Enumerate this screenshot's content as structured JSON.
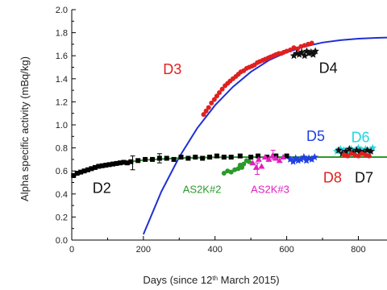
{
  "chart_data": {
    "type": "scatter",
    "xlabel": "Days (since 12th March 2015)",
    "xlabel_parts": {
      "before": "Days (since 12",
      "sup": "th",
      "after": " March 2015)"
    },
    "ylabel": "Alpha specific activity (mBq/kg)",
    "xlim": [
      0,
      880
    ],
    "ylim": [
      0,
      2.0
    ],
    "x_ticks": [
      {
        "value": 0,
        "label": "0"
      },
      {
        "value": 200,
        "label": "200"
      },
      {
        "value": 400,
        "label": "400"
      },
      {
        "value": 600,
        "label": "600"
      },
      {
        "value": 800,
        "label": "800"
      }
    ],
    "y_ticks": [
      {
        "value": 0.0,
        "label": "0.0"
      },
      {
        "value": 0.2,
        "label": "0.2"
      },
      {
        "value": 0.4,
        "label": "0.4"
      },
      {
        "value": 0.6,
        "label": "0.6"
      },
      {
        "value": 0.8,
        "label": "0.8"
      },
      {
        "value": 1.0,
        "label": "1.0"
      },
      {
        "value": 1.2,
        "label": "1.2"
      },
      {
        "value": 1.4,
        "label": "1.4"
      },
      {
        "value": 1.6,
        "label": "1.6"
      },
      {
        "value": 1.8,
        "label": "1.8"
      },
      {
        "value": 2.0,
        "label": "2.0"
      }
    ],
    "grid": false,
    "curves": [
      {
        "color": "#1f2fd6",
        "points": [
          [
            200,
            0.05
          ],
          [
            250,
            0.42
          ],
          [
            300,
            0.72
          ],
          [
            350,
            0.97
          ],
          [
            400,
            1.17
          ],
          [
            450,
            1.33
          ],
          [
            500,
            1.46
          ],
          [
            550,
            1.56
          ],
          [
            600,
            1.63
          ],
          [
            650,
            1.68
          ],
          [
            700,
            1.715
          ],
          [
            750,
            1.735
          ],
          [
            800,
            1.748
          ],
          [
            850,
            1.755
          ],
          [
            880,
            1.758
          ]
        ]
      },
      {
        "color": "#2a9a2a",
        "points": [
          [
            0,
            0.55
          ],
          [
            100,
            0.655
          ],
          [
            200,
            0.695
          ],
          [
            300,
            0.712
          ],
          [
            400,
            0.718
          ],
          [
            500,
            0.72
          ],
          [
            600,
            0.72
          ],
          [
            700,
            0.72
          ],
          [
            800,
            0.72
          ],
          [
            880,
            0.72
          ]
        ]
      }
    ],
    "series": [
      {
        "name": "D2",
        "color": "#000000",
        "marker": "square",
        "points": [
          [
            5,
            0.56
          ],
          [
            15,
            0.58
          ],
          [
            25,
            0.59
          ],
          [
            35,
            0.6
          ],
          [
            45,
            0.61
          ],
          [
            55,
            0.62
          ],
          [
            65,
            0.63
          ],
          [
            75,
            0.64
          ],
          [
            85,
            0.645
          ],
          [
            95,
            0.65
          ],
          [
            105,
            0.655
          ],
          [
            115,
            0.66
          ],
          [
            125,
            0.665
          ],
          [
            135,
            0.67
          ],
          [
            145,
            0.675
          ],
          [
            155,
            0.67
          ],
          [
            165,
            0.68
          ],
          [
            185,
            0.69
          ],
          [
            205,
            0.7
          ],
          [
            225,
            0.7
          ],
          [
            245,
            0.71
          ],
          [
            265,
            0.71
          ],
          [
            285,
            0.7
          ],
          [
            305,
            0.72
          ],
          [
            325,
            0.71
          ],
          [
            345,
            0.72
          ],
          [
            365,
            0.71
          ],
          [
            385,
            0.72
          ],
          [
            405,
            0.73
          ],
          [
            425,
            0.72
          ],
          [
            445,
            0.72
          ],
          [
            470,
            0.73
          ],
          [
            500,
            0.72
          ],
          [
            520,
            0.73
          ],
          [
            545,
            0.72
          ],
          [
            570,
            0.73
          ],
          [
            600,
            0.73
          ]
        ],
        "error_bars": [
          [
            170,
            0.67,
            0.06
          ],
          [
            245,
            0.71,
            0.04
          ]
        ]
      },
      {
        "name": "AS2K#2",
        "color": "#2a9a2a",
        "marker": "circle",
        "points": [
          [
            425,
            0.58
          ],
          [
            435,
            0.6
          ],
          [
            445,
            0.59
          ],
          [
            455,
            0.61
          ],
          [
            465,
            0.62
          ],
          [
            470,
            0.65
          ],
          [
            475,
            0.63
          ],
          [
            480,
            0.66
          ],
          [
            488,
            0.69
          ],
          [
            495,
            0.68
          ]
        ]
      },
      {
        "name": "AS2K#3",
        "color": "#e020c0",
        "marker": "triangle",
        "points": [
          [
            505,
            0.67
          ],
          [
            515,
            0.63
          ],
          [
            522,
            0.7
          ],
          [
            530,
            0.64
          ],
          [
            540,
            0.72
          ],
          [
            550,
            0.7
          ],
          [
            560,
            0.73
          ],
          [
            570,
            0.71
          ],
          [
            580,
            0.69
          ],
          [
            590,
            0.72
          ]
        ],
        "error_bars": [
          [
            518,
            0.62,
            0.05
          ],
          [
            562,
            0.74,
            0.04
          ]
        ]
      },
      {
        "name": "D3",
        "color": "#e02020",
        "marker": "circle",
        "points": [
          [
            368,
            1.09
          ],
          [
            375,
            1.12
          ],
          [
            382,
            1.15
          ],
          [
            390,
            1.19
          ],
          [
            398,
            1.22
          ],
          [
            405,
            1.25
          ],
          [
            412,
            1.28
          ],
          [
            420,
            1.31
          ],
          [
            428,
            1.34
          ],
          [
            435,
            1.36
          ],
          [
            442,
            1.38
          ],
          [
            450,
            1.4
          ],
          [
            458,
            1.42
          ],
          [
            465,
            1.44
          ],
          [
            472,
            1.46
          ],
          [
            480,
            1.47
          ],
          [
            488,
            1.49
          ],
          [
            495,
            1.5
          ],
          [
            503,
            1.51
          ],
          [
            510,
            1.52
          ],
          [
            518,
            1.54
          ],
          [
            525,
            1.55
          ],
          [
            533,
            1.56
          ],
          [
            540,
            1.57
          ],
          [
            548,
            1.58
          ],
          [
            555,
            1.59
          ],
          [
            563,
            1.6
          ],
          [
            570,
            1.61
          ],
          [
            578,
            1.62
          ],
          [
            585,
            1.62
          ],
          [
            592,
            1.63
          ],
          [
            600,
            1.64
          ],
          [
            610,
            1.65
          ],
          [
            620,
            1.67
          ],
          [
            630,
            1.66
          ],
          [
            640,
            1.68
          ],
          [
            650,
            1.69
          ],
          [
            660,
            1.7
          ],
          [
            670,
            1.71
          ]
        ]
      },
      {
        "name": "D4",
        "color": "#111111",
        "marker": "star",
        "points": [
          [
            620,
            1.6
          ],
          [
            628,
            1.62
          ],
          [
            635,
            1.61
          ],
          [
            642,
            1.63
          ],
          [
            650,
            1.6
          ],
          [
            656,
            1.64
          ],
          [
            662,
            1.62
          ],
          [
            668,
            1.63
          ],
          [
            674,
            1.61
          ],
          [
            680,
            1.64
          ]
        ]
      },
      {
        "name": "D5",
        "color": "#2040e0",
        "marker": "star",
        "points": [
          [
            610,
            0.7
          ],
          [
            618,
            0.68
          ],
          [
            625,
            0.71
          ],
          [
            632,
            0.69
          ],
          [
            640,
            0.7
          ],
          [
            648,
            0.72
          ],
          [
            655,
            0.69
          ],
          [
            662,
            0.71
          ],
          [
            670,
            0.7
          ],
          [
            678,
            0.72
          ]
        ]
      },
      {
        "name": "D6",
        "color": "#20d8e0",
        "marker": "star",
        "points": [
          [
            740,
            0.77
          ],
          [
            750,
            0.79
          ],
          [
            760,
            0.78
          ],
          [
            770,
            0.76
          ],
          [
            780,
            0.79
          ],
          [
            790,
            0.77
          ],
          [
            800,
            0.8
          ],
          [
            810,
            0.78
          ],
          [
            820,
            0.79
          ],
          [
            830,
            0.77
          ],
          [
            840,
            0.8
          ]
        ]
      },
      {
        "name": "D7",
        "color": "#111111",
        "marker": "star",
        "points": [
          [
            745,
            0.78
          ],
          [
            755,
            0.75
          ],
          [
            765,
            0.77
          ],
          [
            775,
            0.79
          ],
          [
            785,
            0.76
          ],
          [
            795,
            0.78
          ],
          [
            805,
            0.77
          ],
          [
            815,
            0.76
          ],
          [
            825,
            0.78
          ],
          [
            835,
            0.77
          ]
        ]
      },
      {
        "name": "D8",
        "color": "#e02020",
        "marker": "circle",
        "points": [
          [
            760,
            0.74
          ],
          [
            770,
            0.73
          ],
          [
            780,
            0.75
          ],
          [
            790,
            0.74
          ],
          [
            800,
            0.73
          ],
          [
            810,
            0.75
          ],
          [
            820,
            0.74
          ],
          [
            830,
            0.73
          ]
        ]
      }
    ],
    "annotations": [
      {
        "text": "D3",
        "color": "#e02020",
        "x": 255,
        "y": 1.44,
        "size": "large"
      },
      {
        "text": "D4",
        "color": "#111111",
        "x": 690,
        "y": 1.45,
        "size": "large"
      },
      {
        "text": "D2",
        "color": "#111111",
        "x": 58,
        "y": 0.41,
        "size": "large"
      },
      {
        "text": "AS2K#2",
        "color": "#2a9a2a",
        "x": 310,
        "y": 0.41,
        "size": "small"
      },
      {
        "text": "AS2K#3",
        "color": "#e020c0",
        "x": 500,
        "y": 0.41,
        "size": "small"
      },
      {
        "text": "D5",
        "color": "#2040e0",
        "x": 655,
        "y": 0.86,
        "size": "large"
      },
      {
        "text": "D6",
        "color": "#20d8e0",
        "x": 780,
        "y": 0.85,
        "size": "large"
      },
      {
        "text": "D8",
        "color": "#e02020",
        "x": 702,
        "y": 0.5,
        "size": "large"
      },
      {
        "text": "D7",
        "color": "#111111",
        "x": 790,
        "y": 0.5,
        "size": "large"
      }
    ]
  }
}
